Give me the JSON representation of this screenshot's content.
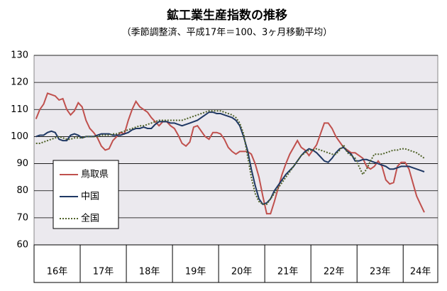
{
  "chart_data": {
    "type": "line",
    "title": "鉱工業生産指数の推移",
    "subtitle": "（季節調整済、平成17年＝100、3ヶ月移動平均）",
    "categories": [
      "16年",
      null,
      null,
      null,
      null,
      null,
      null,
      null,
      null,
      null,
      null,
      null,
      "17年",
      null,
      null,
      null,
      null,
      null,
      null,
      null,
      null,
      null,
      null,
      null,
      "18年",
      null,
      null,
      null,
      null,
      null,
      null,
      null,
      null,
      null,
      null,
      null,
      "19年",
      null,
      null,
      null,
      null,
      null,
      null,
      null,
      null,
      null,
      null,
      null,
      "20年",
      null,
      null,
      null,
      null,
      null,
      null,
      null,
      null,
      null,
      null,
      null,
      "21年",
      null,
      null,
      null,
      null,
      null,
      null,
      null,
      null,
      null,
      null,
      null,
      "22年",
      null,
      null,
      null,
      null,
      null,
      null,
      null,
      null,
      null,
      null,
      null,
      "23年",
      null,
      null,
      null,
      null,
      null,
      null,
      null,
      null,
      null,
      null,
      null,
      "24年",
      null,
      null,
      null,
      null,
      null
    ],
    "ylim": [
      60,
      130
    ],
    "yticks": [
      60,
      70,
      80,
      90,
      100,
      110,
      120,
      130
    ],
    "grid": true,
    "series": [
      {
        "name": "鳥取県",
        "color": "#c0504d",
        "dash": "solid",
        "values": [
          106.5,
          110,
          112,
          116,
          115.5,
          115,
          113.5,
          114,
          110,
          108,
          109.5,
          112.5,
          111,
          106,
          103,
          101.5,
          99.5,
          96.5,
          95,
          95.5,
          98.5,
          100,
          101.5,
          101,
          106,
          110,
          113,
          111,
          110,
          109,
          107,
          105.5,
          104,
          105.5,
          105.5,
          104,
          103,
          100.5,
          97.5,
          96.5,
          98,
          103.5,
          104,
          102,
          100,
          99,
          101.5,
          101.5,
          101,
          99,
          96,
          94.5,
          93.5,
          94.5,
          94.5,
          94.5,
          93.5,
          90,
          85,
          78,
          71.5,
          71.5,
          76,
          81,
          86,
          90,
          93.5,
          96,
          98.5,
          96,
          95,
          93,
          95,
          97,
          101,
          105,
          105,
          103,
          100,
          98,
          96,
          95,
          94,
          94,
          93,
          92,
          89,
          88,
          89,
          91,
          89,
          84,
          82.5,
          83,
          89,
          90.5,
          90.5,
          88,
          83,
          78,
          75,
          72
        ]
      },
      {
        "name": "中国",
        "color": "#1f3864",
        "dash": "solid",
        "values": [
          100,
          100.5,
          100.5,
          101.5,
          102,
          101.5,
          99,
          98.5,
          98.5,
          100.5,
          101,
          100.5,
          99.5,
          100,
          100,
          100,
          100.5,
          101,
          101,
          101,
          100.5,
          100.5,
          100.5,
          101,
          101.5,
          102.5,
          103,
          103,
          103.5,
          103,
          103,
          104.5,
          105.5,
          105.5,
          105.5,
          105,
          105,
          104.5,
          104,
          104.5,
          105,
          105.5,
          106,
          107,
          108,
          109,
          109,
          108.5,
          108.5,
          108,
          107.5,
          107,
          106,
          104,
          100,
          95,
          88,
          82,
          77,
          75,
          75.5,
          77,
          80,
          82,
          84,
          86,
          87.5,
          89,
          91,
          93,
          94.5,
          95.5,
          95,
          94,
          92.5,
          91,
          90.5,
          92,
          94,
          95.5,
          96,
          94.5,
          93.5,
          91,
          91,
          91.5,
          91.5,
          91,
          90.5,
          90,
          89.5,
          89,
          88,
          88,
          88.5,
          89,
          89,
          89,
          88.5,
          88,
          87.5,
          87
        ]
      },
      {
        "name": "全国",
        "color": "#4f6228",
        "dash": "dotted",
        "values": [
          97.5,
          97.5,
          98,
          98.5,
          99,
          99.5,
          100,
          99.5,
          99,
          99,
          99.5,
          99.5,
          99.5,
          100,
          100,
          100,
          100,
          100.5,
          100.5,
          100.5,
          101,
          101,
          101.5,
          102,
          102.5,
          103,
          103.5,
          104,
          104,
          104.5,
          105,
          105.5,
          106,
          106,
          106,
          106,
          106,
          106,
          106,
          106.5,
          107,
          107.5,
          108,
          108.5,
          109,
          109.5,
          109.5,
          109.5,
          109.5,
          109,
          108.5,
          108,
          107,
          105,
          101,
          93,
          85,
          79,
          76,
          75,
          75,
          77,
          79,
          81,
          83,
          85,
          87,
          89,
          91,
          93,
          94,
          95,
          95,
          95.5,
          95,
          94.5,
          94,
          93.5,
          93.5,
          95,
          97,
          94,
          93,
          92,
          89,
          86,
          88,
          91,
          93.5,
          93.5,
          93.5,
          94,
          94.5,
          95,
          95,
          95.5,
          95.5,
          95,
          94.5,
          94,
          93,
          92
        ]
      }
    ]
  }
}
